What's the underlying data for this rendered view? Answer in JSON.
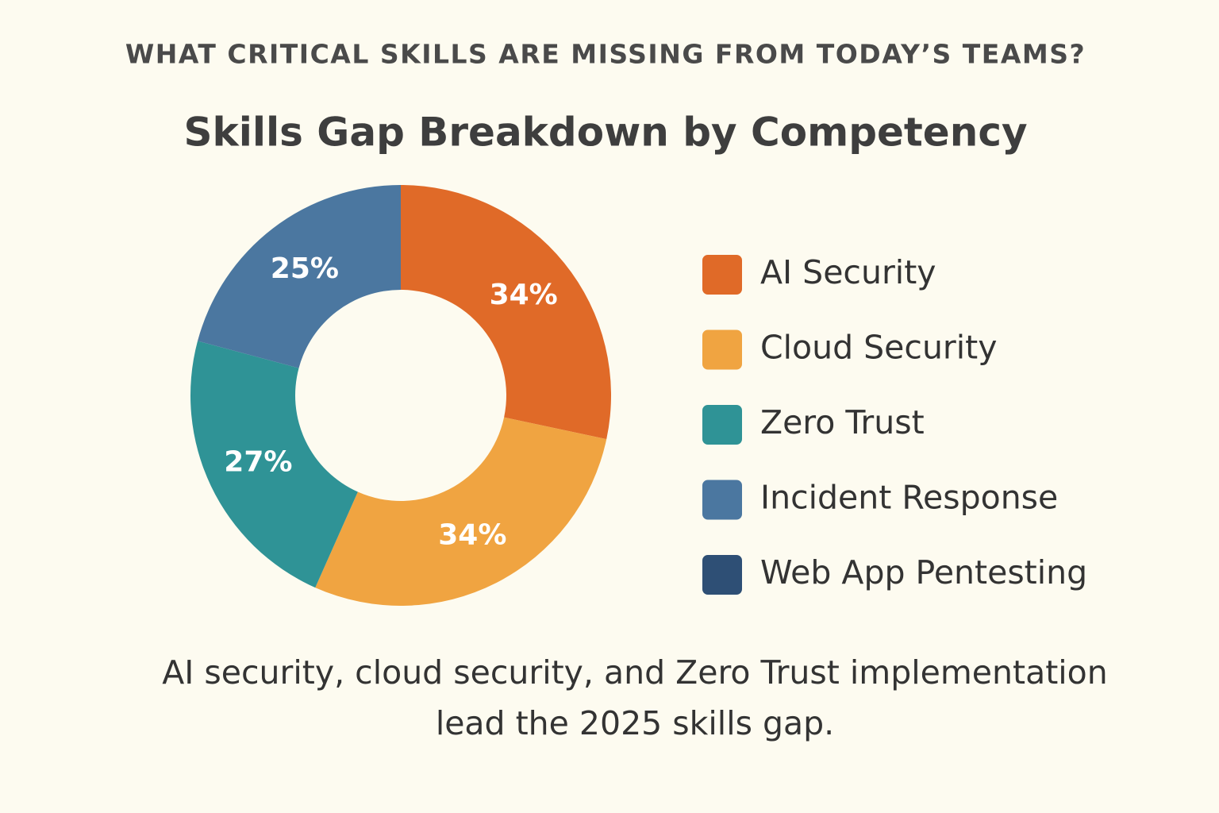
{
  "chart_data": {
    "type": "donut",
    "kicker": "WHAT CRITICAL SKILLS ARE MISSING FROM TODAY’S TEAMS?",
    "title": "Skills Gap Breakdown by Competency",
    "categories": [
      "AI Security",
      "Cloud Security",
      "Zero Trust",
      "Incident Response",
      "Web App Pentesting"
    ],
    "values": [
      34,
      34,
      27,
      25,
      null
    ],
    "value_labels": [
      "34%",
      "34%",
      "27%",
      "25%",
      null
    ],
    "colors": [
      "#e06a28",
      "#f0a441",
      "#2f9396",
      "#4b77a0",
      "#2e4f75"
    ],
    "caption": "AI security, cloud security, and Zero Trust implementation lead the 2025 skills gap."
  }
}
